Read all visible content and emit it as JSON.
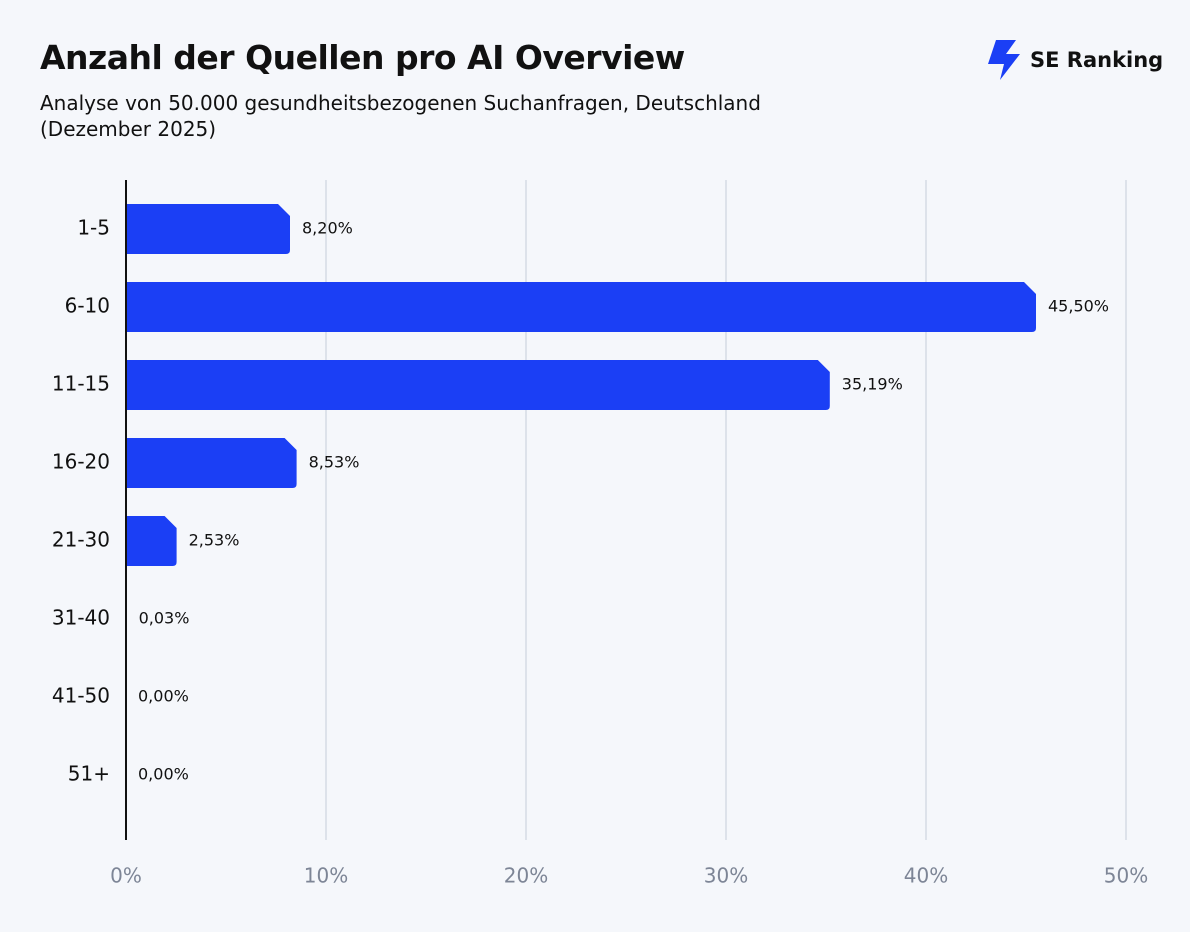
{
  "chart_data": {
    "type": "bar",
    "orientation": "horizontal",
    "title": "Anzahl der Quellen pro AI Overview",
    "subtitle": "Analyse von 50.000 gesundheitsbezogenen Suchanfragen, Deutschland (Dezember 2025)",
    "logo": "SE Ranking",
    "categories": [
      "1-5",
      "6-10",
      "11-15",
      "16-20",
      "21-30",
      "31-40",
      "41-50",
      "51+"
    ],
    "values": [
      8.2,
      45.5,
      35.19,
      8.53,
      2.53,
      0.03,
      0.0,
      0.0
    ],
    "value_labels": [
      "8,20%",
      "45,50%",
      "35,19%",
      "8,53%",
      "2,53%",
      "0,03%",
      "0,00%",
      "0,00%"
    ],
    "color": "#1b3ff5",
    "xlim": [
      0,
      50
    ],
    "xticks": [
      {
        "value": 0,
        "label": "0%"
      },
      {
        "value": 10,
        "label": "10%"
      },
      {
        "value": 20,
        "label": "20%"
      },
      {
        "value": 30,
        "label": "30%"
      },
      {
        "value": 40,
        "label": "40%"
      },
      {
        "value": 50,
        "label": "50%"
      }
    ],
    "grid": true
  }
}
